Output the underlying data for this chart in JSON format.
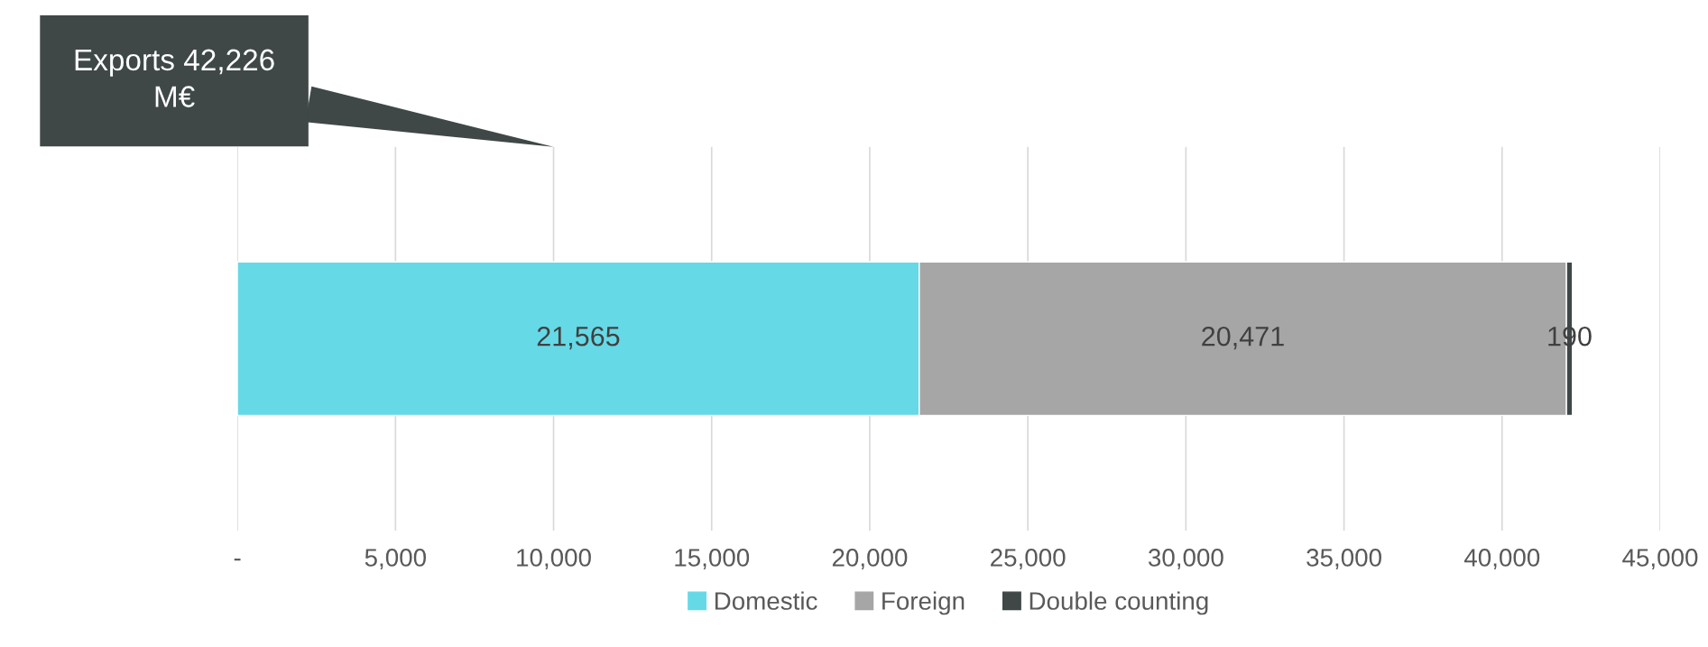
{
  "chart_data": {
    "type": "bar",
    "orientation": "horizontal",
    "stacked": true,
    "categories": [
      null
    ],
    "series": [
      {
        "name": "Domestic",
        "color": "#66d9e6",
        "values": [
          21565
        ],
        "value_labels": [
          "21,565"
        ]
      },
      {
        "name": "Foreign",
        "color": "#a6a6a6",
        "values": [
          20471
        ],
        "value_labels": [
          "20,471"
        ]
      },
      {
        "name": "Double counting",
        "color": "#3f4747",
        "values": [
          190
        ],
        "value_labels": [
          "190"
        ]
      }
    ],
    "xlim": [
      0,
      45000
    ],
    "xticks": [
      {
        "value": 0,
        "label": "-"
      },
      {
        "value": 5000,
        "label": "5,000"
      },
      {
        "value": 10000,
        "label": "10,000"
      },
      {
        "value": 15000,
        "label": "15,000"
      },
      {
        "value": 20000,
        "label": "20,000"
      },
      {
        "value": 25000,
        "label": "25,000"
      },
      {
        "value": 30000,
        "label": "30,000"
      },
      {
        "value": 35000,
        "label": "35,000"
      },
      {
        "value": 40000,
        "label": "40,000"
      },
      {
        "value": 45000,
        "label": "45,000"
      }
    ],
    "grid": "x",
    "legend": "bottom",
    "annotations": [
      "Exports 42,226\nM€"
    ]
  }
}
